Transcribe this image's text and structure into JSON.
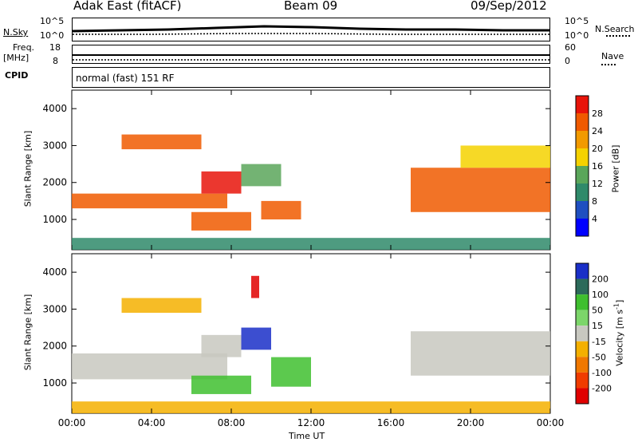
{
  "header": {
    "station": "Adak East (fitACF)",
    "beam": "Beam 09",
    "date": "09/Sep/2012"
  },
  "summary_panels": {
    "nsky_label": "N.Sky",
    "nsearch_label": "N.Search",
    "noise_ticks_left": [
      "10^5",
      "10^0"
    ],
    "noise_ticks_right": [
      "10^5",
      "10^0"
    ],
    "freq_label": "Freq.",
    "freq_unit": "[MHz]",
    "freq_ticks": [
      "18",
      "8"
    ],
    "nave_label": "Nave",
    "nave_ticks": [
      "60",
      "0"
    ],
    "cpid_label": "CPID",
    "cpid_text": "normal (fast) 151 RF"
  },
  "chart_data": [
    {
      "type": "heatmap",
      "title": "",
      "xlabel": "",
      "ylabel": "Slant Range [km]",
      "xlim": [
        "00:00",
        "24:00"
      ],
      "ylim": [
        180,
        4500
      ],
      "x_tick_labels": [
        "00:00",
        "04:00",
        "08:00",
        "12:00",
        "16:00",
        "20:00",
        "00:00"
      ],
      "y_ticks": [
        1000,
        2000,
        3000,
        4000
      ],
      "colorbar": {
        "label": "Power [dB]",
        "ticks": [
          "4",
          "8",
          "12",
          "16",
          "20",
          "24",
          "28"
        ],
        "colors": [
          "#0000ff",
          "#1f4fc0",
          "#2f8a6a",
          "#5aa65a",
          "#f5d200",
          "#f29a00",
          "#f05a00",
          "#e8140a"
        ]
      },
      "regions": [
        {
          "t_start": 0.0,
          "t_end": 7.8,
          "range_min": 1300,
          "range_max": 1700,
          "value": 26
        },
        {
          "t_start": 2.5,
          "t_end": 6.5,
          "range_min": 2900,
          "range_max": 3300,
          "value": 24
        },
        {
          "t_start": 6.5,
          "t_end": 8.5,
          "range_min": 1700,
          "range_max": 2300,
          "value": 28
        },
        {
          "t_start": 6.0,
          "t_end": 9.0,
          "range_min": 700,
          "range_max": 1200,
          "value": 26
        },
        {
          "t_start": 8.5,
          "t_end": 10.5,
          "range_min": 1900,
          "range_max": 2500,
          "value": 12
        },
        {
          "t_start": 9.5,
          "t_end": 11.5,
          "range_min": 1000,
          "range_max": 1500,
          "value": 24
        },
        {
          "t_start": 17.0,
          "t_end": 24.0,
          "range_min": 1200,
          "range_max": 2400,
          "value": 26
        },
        {
          "t_start": 19.5,
          "t_end": 24.0,
          "range_min": 2400,
          "range_max": 3000,
          "value": 18
        },
        {
          "t_start": 0.0,
          "t_end": 24.0,
          "range_min": 180,
          "range_max": 500,
          "value": 8
        }
      ]
    },
    {
      "type": "heatmap",
      "title": "",
      "xlabel": "Time UT",
      "ylabel": "Slant Range [km]",
      "xlim": [
        "00:00",
        "24:00"
      ],
      "ylim": [
        180,
        4500
      ],
      "x_tick_labels": [
        "00:00",
        "04:00",
        "08:00",
        "12:00",
        "16:00",
        "20:00",
        "00:00"
      ],
      "y_ticks": [
        1000,
        2000,
        3000,
        4000
      ],
      "colorbar": {
        "label": "Velocity [m s",
        "label_superscript": "-1",
        "label_close": "]",
        "ticks": [
          "200",
          "100",
          "50",
          "15",
          "-15",
          "-50",
          "-100",
          "-200"
        ],
        "colors": [
          "#1a2fc8",
          "#2c6a5a",
          "#3fbf2f",
          "#7cd66a",
          "#c8c8c0",
          "#f4b000",
          "#f07800",
          "#f03c00",
          "#e00000"
        ]
      },
      "regions": [
        {
          "t_start": 0.0,
          "t_end": 7.8,
          "range_min": 1100,
          "range_max": 1800,
          "value": 0
        },
        {
          "t_start": 2.5,
          "t_end": 6.5,
          "range_min": 2900,
          "range_max": 3300,
          "value": -40
        },
        {
          "t_start": 6.5,
          "t_end": 8.5,
          "range_min": 1700,
          "range_max": 2300,
          "value": 0
        },
        {
          "t_start": 8.5,
          "t_end": 10.0,
          "range_min": 1900,
          "range_max": 2500,
          "value": 250
        },
        {
          "t_start": 10.0,
          "t_end": 12.0,
          "range_min": 900,
          "range_max": 1700,
          "value": 60
        },
        {
          "t_start": 6.0,
          "t_end": 9.0,
          "range_min": 700,
          "range_max": 1200,
          "value": 60
        },
        {
          "t_start": 9.0,
          "t_end": 9.4,
          "range_min": 3300,
          "range_max": 3900,
          "value": -250
        },
        {
          "t_start": 17.0,
          "t_end": 24.0,
          "range_min": 1200,
          "range_max": 2400,
          "value": 0
        },
        {
          "t_start": 0.0,
          "t_end": 24.0,
          "range_min": 180,
          "range_max": 500,
          "value": -40
        }
      ]
    }
  ]
}
